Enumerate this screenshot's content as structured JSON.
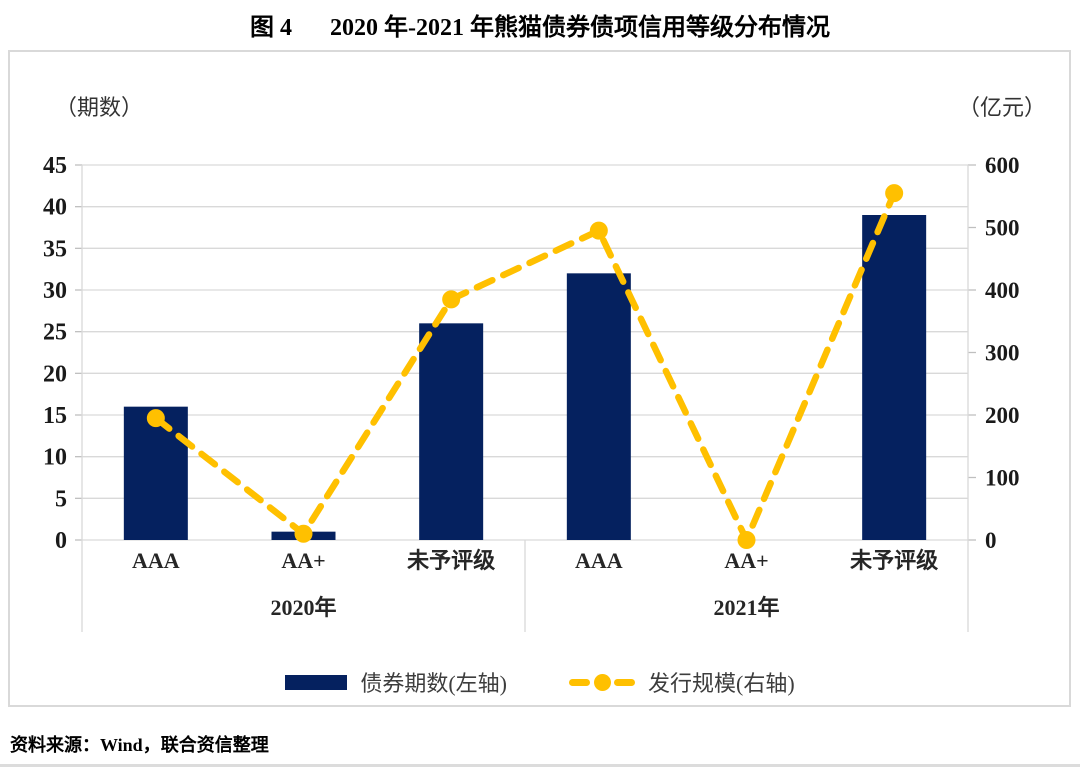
{
  "page": {
    "title_prefix": "图 4",
    "title_main": "2020 年-2021 年熊猫债券债项信用等级分布情况",
    "source": "资料来源：Wind，联合资信整理"
  },
  "chart_data": {
    "type": "bar+line combo, dual axis",
    "title": "图 4 2020 年-2021 年熊猫债券债项信用等级分布情况",
    "categories": [
      "AAA",
      "AA+",
      "未予评级",
      "AAA",
      "AA+",
      "未予评级"
    ],
    "groups": [
      {
        "label": "2020年",
        "span": 3
      },
      {
        "label": "2021年",
        "span": 3
      }
    ],
    "series": [
      {
        "name": "债券期数(左轴)",
        "type": "bar",
        "axis": "left",
        "color": "#05215F",
        "values": [
          16,
          1,
          26,
          32,
          0,
          39
        ]
      },
      {
        "name": "发行规模(右轴)",
        "type": "line",
        "axis": "right",
        "style": "dashed-with-dots",
        "color": "#FFC000",
        "values": [
          195,
          10,
          385,
          495,
          0,
          555
        ]
      }
    ],
    "left_axis": {
      "title": "（期数）",
      "min": 0,
      "max": 45,
      "step": 5
    },
    "right_axis": {
      "title": "（亿元）",
      "min": 0,
      "max": 600,
      "step": 100
    },
    "grid": true,
    "legend_position": "bottom"
  }
}
